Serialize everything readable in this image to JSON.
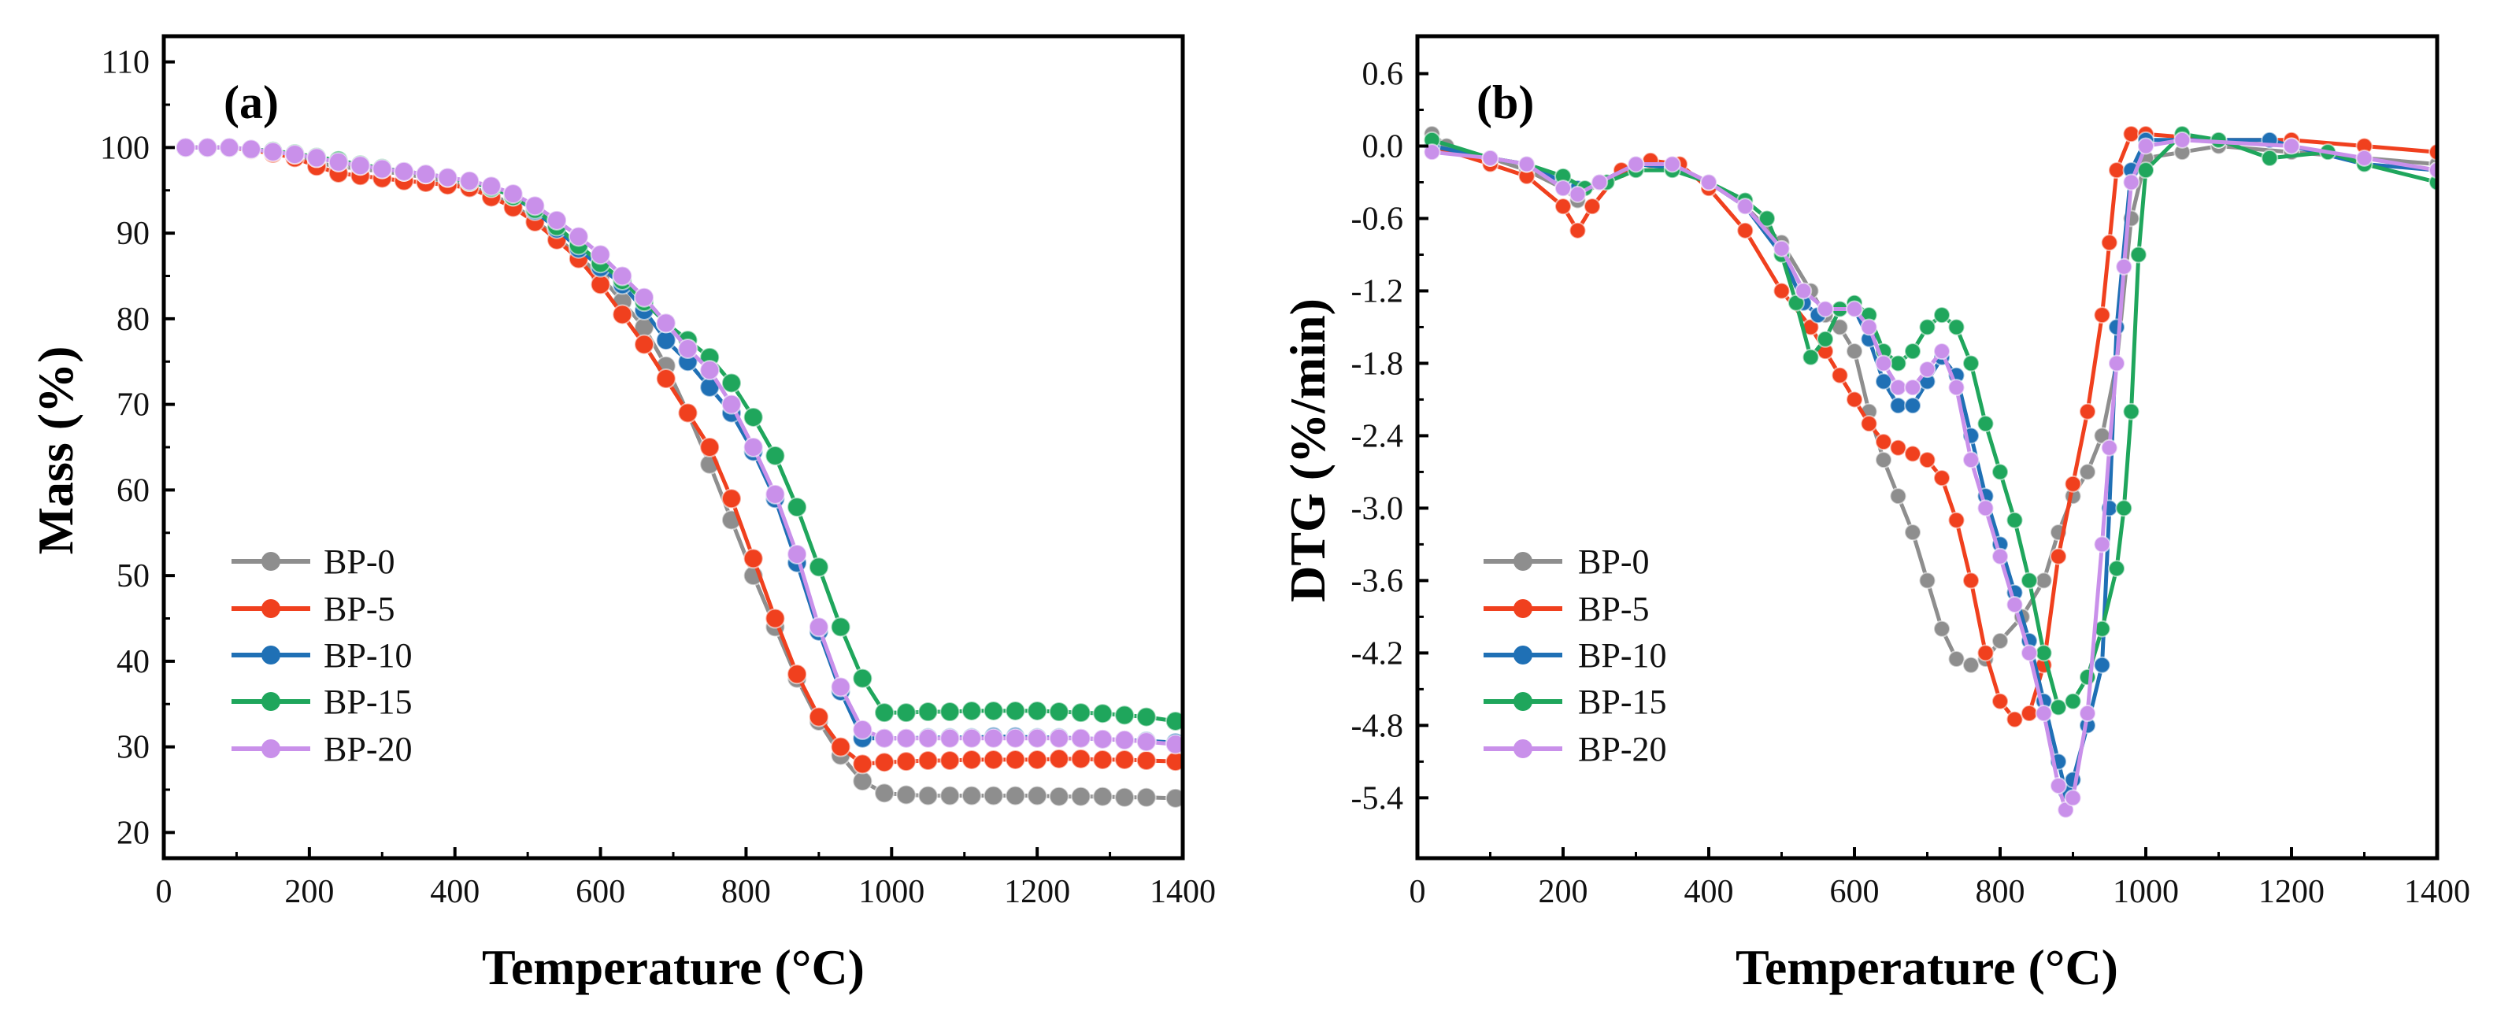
{
  "colors": {
    "BP-0": "#8e8e8e",
    "BP-5": "#f0401e",
    "BP-10": "#1f70b5",
    "BP-15": "#1fa65c",
    "BP-20": "#c990ea"
  },
  "chart_data": [
    {
      "type": "line",
      "panel_label": "(a)",
      "title": "",
      "xlabel": "Temperature (°C)",
      "ylabel": "Mass (%)",
      "xlim": [
        0,
        1400
      ],
      "ylim": [
        17,
        113
      ],
      "xticks": [
        0,
        200,
        400,
        600,
        800,
        1000,
        1200,
        1400
      ],
      "yticks": [
        20,
        30,
        40,
        50,
        60,
        70,
        80,
        90,
        100,
        110
      ],
      "legend": "bottom-left",
      "grid": false,
      "series": [
        {
          "name": "BP-0",
          "x": [
            30,
            60,
            90,
            120,
            150,
            180,
            210,
            240,
            270,
            300,
            330,
            360,
            390,
            420,
            450,
            480,
            510,
            540,
            570,
            600,
            630,
            660,
            690,
            720,
            750,
            780,
            810,
            840,
            870,
            900,
            930,
            960,
            990,
            1020,
            1050,
            1080,
            1110,
            1140,
            1170,
            1200,
            1230,
            1260,
            1290,
            1320,
            1350,
            1390
          ],
          "y": [
            100,
            100,
            100,
            99.8,
            99.5,
            99,
            98.2,
            97.8,
            97.5,
            97.2,
            96.9,
            96.5,
            96,
            95.5,
            94.5,
            93.3,
            91.5,
            89.5,
            87.3,
            85,
            82,
            79,
            74.5,
            69,
            63,
            56.5,
            50,
            44,
            38,
            33,
            29,
            26,
            24.6,
            24.4,
            24.3,
            24.3,
            24.3,
            24.3,
            24.3,
            24.3,
            24.2,
            24.2,
            24.2,
            24.1,
            24.1,
            24
          ]
        },
        {
          "name": "BP-5",
          "x": [
            30,
            60,
            90,
            120,
            150,
            180,
            210,
            240,
            270,
            300,
            330,
            360,
            390,
            420,
            450,
            480,
            510,
            540,
            570,
            600,
            630,
            660,
            690,
            720,
            750,
            780,
            810,
            840,
            870,
            900,
            930,
            960,
            990,
            1020,
            1050,
            1080,
            1110,
            1140,
            1170,
            1200,
            1230,
            1260,
            1290,
            1320,
            1350,
            1390
          ],
          "y": [
            100,
            100,
            100,
            99.7,
            99.3,
            98.8,
            97.8,
            97,
            96.7,
            96.4,
            96.1,
            95.9,
            95.6,
            95.3,
            94.2,
            93,
            91.3,
            89.2,
            87,
            84,
            80.5,
            77,
            73,
            69,
            65,
            59,
            52,
            45,
            38.5,
            33.5,
            30,
            28,
            28.2,
            28.3,
            28.4,
            28.4,
            28.5,
            28.5,
            28.5,
            28.5,
            28.6,
            28.6,
            28.5,
            28.5,
            28.4,
            28.3
          ]
        },
        {
          "name": "BP-10",
          "x": [
            30,
            60,
            90,
            120,
            150,
            180,
            210,
            240,
            270,
            300,
            330,
            360,
            390,
            420,
            450,
            480,
            510,
            540,
            570,
            600,
            630,
            660,
            690,
            720,
            750,
            780,
            810,
            840,
            870,
            900,
            930,
            960,
            990,
            1020,
            1050,
            1080,
            1110,
            1140,
            1170,
            1200,
            1230,
            1260,
            1290,
            1320,
            1350,
            1390
          ],
          "y": [
            100,
            100,
            100,
            99.8,
            99.5,
            99.2,
            98.8,
            98.3,
            97.9,
            97.5,
            97.2,
            96.9,
            96.5,
            96,
            95.3,
            94.3,
            92.6,
            90.5,
            88.2,
            86,
            84,
            81,
            77.5,
            75,
            72,
            69,
            64.5,
            59,
            51.5,
            43.5,
            36.5,
            31,
            31,
            31,
            31.1,
            31.1,
            31.1,
            31.2,
            31.2,
            31.1,
            31.1,
            31,
            30.9,
            30.8,
            30.7,
            30.5
          ]
        },
        {
          "name": "BP-15",
          "x": [
            30,
            60,
            90,
            120,
            150,
            180,
            210,
            240,
            270,
            300,
            330,
            360,
            390,
            420,
            450,
            480,
            510,
            540,
            570,
            600,
            630,
            660,
            690,
            720,
            750,
            780,
            810,
            840,
            870,
            900,
            930,
            960,
            990,
            1020,
            1050,
            1080,
            1110,
            1140,
            1170,
            1200,
            1230,
            1260,
            1290,
            1320,
            1350,
            1390
          ],
          "y": [
            100,
            100,
            100,
            99.8,
            99.6,
            99.3,
            98.9,
            98.5,
            98,
            97.6,
            97.2,
            96.9,
            96.5,
            96,
            95.3,
            94.3,
            92.8,
            90.8,
            88.6,
            86.5,
            84.5,
            82,
            79.5,
            77.5,
            75.5,
            72.5,
            68.5,
            64,
            58,
            51,
            44,
            38,
            34,
            34,
            34.1,
            34.1,
            34.2,
            34.2,
            34.2,
            34.2,
            34.1,
            34,
            33.9,
            33.7,
            33.5,
            33
          ]
        },
        {
          "name": "BP-20",
          "x": [
            30,
            60,
            90,
            120,
            150,
            180,
            210,
            240,
            270,
            300,
            330,
            360,
            390,
            420,
            450,
            480,
            510,
            540,
            570,
            600,
            630,
            660,
            690,
            720,
            750,
            780,
            810,
            840,
            870,
            900,
            930,
            960,
            990,
            1020,
            1050,
            1080,
            1110,
            1140,
            1170,
            1200,
            1230,
            1260,
            1290,
            1320,
            1350,
            1390
          ],
          "y": [
            100,
            100,
            100,
            99.8,
            99.5,
            99.2,
            98.8,
            98.3,
            97.9,
            97.5,
            97.2,
            96.9,
            96.5,
            96.1,
            95.5,
            94.6,
            93.2,
            91.5,
            89.6,
            87.5,
            85,
            82.5,
            79.5,
            76.5,
            74,
            70,
            65,
            59.5,
            52.5,
            44,
            37,
            32,
            31,
            31,
            31,
            31,
            31,
            31,
            31,
            31,
            31,
            31,
            30.9,
            30.8,
            30.6,
            30.3
          ]
        }
      ]
    },
    {
      "type": "line",
      "panel_label": "(b)",
      "title": "",
      "xlabel": "Temperature (°C)",
      "ylabel": "DTG (%/min)",
      "xlim": [
        0,
        1400
      ],
      "ylim": [
        -5.9,
        0.91
      ],
      "xticks": [
        0,
        200,
        400,
        600,
        800,
        1000,
        1200,
        1400
      ],
      "yticks": [
        "0.6",
        "0.0",
        "-0.6",
        "-1.2",
        "-1.8",
        "-2.4",
        "-3.0",
        "-3.6",
        "-4.2",
        "-4.8",
        "-5.4"
      ],
      "legend": "bottom-left",
      "grid": false,
      "series": [
        {
          "name": "BP-0",
          "x": [
            20,
            40,
            100,
            150,
            200,
            220,
            250,
            300,
            350,
            400,
            450,
            500,
            540,
            560,
            580,
            600,
            620,
            640,
            660,
            680,
            700,
            720,
            740,
            760,
            780,
            800,
            830,
            860,
            880,
            900,
            920,
            940,
            960,
            980,
            1000,
            1050,
            1100,
            1200,
            1300,
            1400
          ],
          "y": [
            0.1,
            0,
            -0.1,
            -0.2,
            -0.35,
            -0.45,
            -0.3,
            -0.15,
            -0.15,
            -0.3,
            -0.5,
            -0.8,
            -1.2,
            -1.4,
            -1.5,
            -1.7,
            -2.2,
            -2.6,
            -2.9,
            -3.2,
            -3.6,
            -4.0,
            -4.25,
            -4.3,
            -4.25,
            -4.1,
            -3.9,
            -3.6,
            -3.2,
            -2.9,
            -2.7,
            -2.4,
            -1.8,
            -0.6,
            -0.1,
            -0.05,
            0,
            -0.05,
            -0.1,
            -0.15
          ]
        },
        {
          "name": "BP-5",
          "x": [
            20,
            100,
            150,
            200,
            220,
            240,
            280,
            320,
            360,
            400,
            450,
            500,
            540,
            560,
            580,
            600,
            620,
            640,
            660,
            680,
            700,
            720,
            740,
            760,
            780,
            800,
            820,
            840,
            860,
            880,
            900,
            920,
            940,
            950,
            960,
            980,
            1000,
            1100,
            1200,
            1300,
            1400
          ],
          "y": [
            0,
            -0.15,
            -0.25,
            -0.5,
            -0.7,
            -0.5,
            -0.2,
            -0.12,
            -0.15,
            -0.35,
            -0.7,
            -1.2,
            -1.5,
            -1.7,
            -1.9,
            -2.1,
            -2.3,
            -2.45,
            -2.5,
            -2.55,
            -2.6,
            -2.75,
            -3.1,
            -3.6,
            -4.2,
            -4.6,
            -4.75,
            -4.7,
            -4.3,
            -3.4,
            -2.8,
            -2.2,
            -1.4,
            -0.8,
            -0.2,
            0.1,
            0.1,
            0.05,
            0.05,
            0,
            -0.05
          ]
        },
        {
          "name": "BP-10",
          "x": [
            20,
            100,
            150,
            200,
            220,
            250,
            300,
            350,
            400,
            450,
            500,
            530,
            550,
            580,
            600,
            620,
            640,
            660,
            680,
            700,
            720,
            740,
            760,
            780,
            800,
            820,
            840,
            860,
            880,
            890,
            900,
            920,
            940,
            950,
            960,
            980,
            1000,
            1100,
            1170,
            1200,
            1300,
            1400
          ],
          "y": [
            0,
            -0.1,
            -0.15,
            -0.3,
            -0.35,
            -0.3,
            -0.15,
            -0.18,
            -0.3,
            -0.5,
            -0.9,
            -1.3,
            -1.4,
            -1.35,
            -1.35,
            -1.6,
            -1.95,
            -2.15,
            -2.15,
            -1.95,
            -1.75,
            -1.9,
            -2.4,
            -2.9,
            -3.3,
            -3.7,
            -4.1,
            -4.6,
            -5.1,
            -5.35,
            -5.25,
            -4.8,
            -4.3,
            -3.0,
            -1.5,
            -0.2,
            0.05,
            0.05,
            0.05,
            0,
            -0.15,
            -0.2
          ]
        },
        {
          "name": "BP-15",
          "x": [
            20,
            100,
            150,
            200,
            230,
            260,
            300,
            350,
            400,
            450,
            480,
            500,
            520,
            540,
            560,
            580,
            600,
            620,
            640,
            660,
            680,
            700,
            720,
            740,
            760,
            780,
            800,
            820,
            840,
            860,
            880,
            900,
            920,
            940,
            960,
            970,
            980,
            990,
            1000,
            1050,
            1100,
            1170,
            1250,
            1300,
            1400
          ],
          "y": [
            0.05,
            -0.1,
            -0.15,
            -0.25,
            -0.35,
            -0.3,
            -0.2,
            -0.2,
            -0.3,
            -0.45,
            -0.6,
            -0.9,
            -1.3,
            -1.75,
            -1.6,
            -1.35,
            -1.3,
            -1.4,
            -1.7,
            -1.8,
            -1.7,
            -1.5,
            -1.4,
            -1.5,
            -1.8,
            -2.3,
            -2.7,
            -3.1,
            -3.6,
            -4.2,
            -4.65,
            -4.6,
            -4.4,
            -4.0,
            -3.5,
            -3.0,
            -2.2,
            -0.9,
            -0.2,
            0.1,
            0.05,
            -0.1,
            -0.05,
            -0.15,
            -0.3
          ]
        },
        {
          "name": "BP-20",
          "x": [
            20,
            100,
            150,
            200,
            220,
            250,
            300,
            350,
            400,
            450,
            500,
            530,
            560,
            600,
            620,
            640,
            660,
            680,
            700,
            720,
            740,
            760,
            780,
            800,
            820,
            840,
            860,
            880,
            890,
            900,
            920,
            940,
            950,
            960,
            970,
            980,
            1000,
            1050,
            1200,
            1300,
            1400
          ],
          "y": [
            -0.05,
            -0.1,
            -0.15,
            -0.35,
            -0.4,
            -0.3,
            -0.15,
            -0.15,
            -0.3,
            -0.5,
            -0.85,
            -1.2,
            -1.35,
            -1.35,
            -1.5,
            -1.8,
            -2.0,
            -2.0,
            -1.85,
            -1.7,
            -2.0,
            -2.6,
            -3.0,
            -3.4,
            -3.8,
            -4.2,
            -4.7,
            -5.3,
            -5.5,
            -5.4,
            -4.7,
            -3.3,
            -2.5,
            -1.8,
            -1.0,
            -0.3,
            0,
            0.05,
            0,
            -0.1,
            -0.2
          ]
        }
      ]
    }
  ]
}
